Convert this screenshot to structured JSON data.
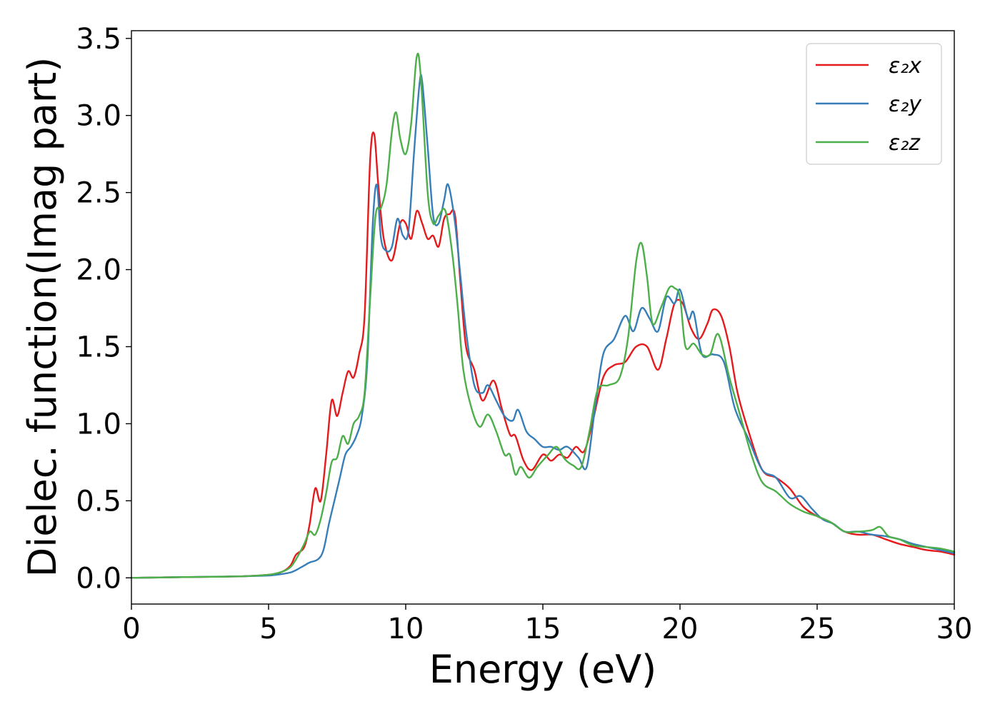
{
  "chart_data": {
    "type": "line",
    "xlabel": "Energy (eV)",
    "ylabel": "Dielec. function(Imag part)",
    "xlim": [
      0,
      30
    ],
    "ylim": [
      -0.17,
      3.55
    ],
    "xticks": [
      0,
      5,
      10,
      15,
      20,
      25,
      30
    ],
    "yticks": [
      0.0,
      0.5,
      1.0,
      1.5,
      2.0,
      2.5,
      3.0,
      3.5
    ],
    "xtick_labels": [
      "0",
      "5",
      "10",
      "15",
      "20",
      "25",
      "30"
    ],
    "ytick_labels": [
      "0.0",
      "0.5",
      "1.0",
      "1.5",
      "2.0",
      "2.5",
      "3.0",
      "3.5"
    ],
    "grid": false,
    "legend_position": "top-right",
    "series": [
      {
        "name": "ε₂x",
        "color": "#e41a1c",
        "x": [
          0,
          2,
          4,
          5,
          5.5,
          5.8,
          6.0,
          6.3,
          6.5,
          6.7,
          6.9,
          7.1,
          7.3,
          7.5,
          7.7,
          7.9,
          8.1,
          8.3,
          8.5,
          8.7,
          8.85,
          9.0,
          9.2,
          9.5,
          9.8,
          10.0,
          10.2,
          10.4,
          10.6,
          10.8,
          11.0,
          11.2,
          11.4,
          11.6,
          11.8,
          12.0,
          12.2,
          12.5,
          12.8,
          13.2,
          13.5,
          13.8,
          14.0,
          14.3,
          14.6,
          15.0,
          15.3,
          15.6,
          15.9,
          16.2,
          16.5,
          16.8,
          17.2,
          17.6,
          18.0,
          18.4,
          18.8,
          19.2,
          19.5,
          19.8,
          20.1,
          20.4,
          20.7,
          21.0,
          21.2,
          21.5,
          21.8,
          22.1,
          22.5,
          23.0,
          23.5,
          24.0,
          24.5,
          25.0,
          25.5,
          26.0,
          26.5,
          27.0,
          27.5,
          28.0,
          28.5,
          29.0,
          29.5,
          30.0
        ],
        "values": [
          0.0,
          0.005,
          0.01,
          0.02,
          0.04,
          0.08,
          0.15,
          0.2,
          0.35,
          0.58,
          0.5,
          0.8,
          1.15,
          1.05,
          1.2,
          1.34,
          1.3,
          1.45,
          1.7,
          2.7,
          2.88,
          2.55,
          2.2,
          2.06,
          2.3,
          2.3,
          2.2,
          2.38,
          2.3,
          2.2,
          2.22,
          2.15,
          2.33,
          2.36,
          2.35,
          1.9,
          1.5,
          1.35,
          1.15,
          1.28,
          1.1,
          0.93,
          0.92,
          0.76,
          0.7,
          0.8,
          0.76,
          0.8,
          0.78,
          0.85,
          0.82,
          1.0,
          1.3,
          1.38,
          1.4,
          1.5,
          1.5,
          1.35,
          1.55,
          1.78,
          1.78,
          1.62,
          1.55,
          1.65,
          1.74,
          1.7,
          1.5,
          1.2,
          0.95,
          0.7,
          0.65,
          0.58,
          0.46,
          0.4,
          0.36,
          0.3,
          0.28,
          0.28,
          0.25,
          0.22,
          0.2,
          0.18,
          0.17,
          0.15
        ]
      },
      {
        "name": "ε₂y",
        "color": "#377eb8",
        "x": [
          0,
          2,
          4,
          5,
          5.5,
          5.8,
          6.0,
          6.3,
          6.5,
          6.8,
          7.0,
          7.2,
          7.4,
          7.6,
          7.8,
          8.0,
          8.2,
          8.4,
          8.6,
          8.8,
          8.95,
          9.1,
          9.3,
          9.5,
          9.7,
          9.9,
          10.1,
          10.3,
          10.5,
          10.6,
          10.8,
          11.0,
          11.2,
          11.4,
          11.55,
          11.8,
          12.0,
          12.2,
          12.5,
          12.8,
          13.0,
          13.3,
          13.6,
          13.9,
          14.1,
          14.4,
          14.7,
          15.0,
          15.3,
          15.6,
          15.9,
          16.3,
          16.6,
          16.9,
          17.2,
          17.6,
          18.0,
          18.3,
          18.6,
          18.9,
          19.2,
          19.5,
          19.8,
          20.0,
          20.3,
          20.5,
          20.8,
          21.2,
          21.6,
          22.0,
          22.5,
          23.0,
          23.5,
          24.0,
          24.4,
          24.8,
          25.2,
          25.6,
          26.0,
          26.5,
          27.0,
          27.5,
          28.0,
          28.5,
          29.0,
          29.5,
          30.0
        ],
        "values": [
          0.0,
          0.005,
          0.01,
          0.015,
          0.025,
          0.035,
          0.05,
          0.08,
          0.1,
          0.12,
          0.18,
          0.35,
          0.5,
          0.65,
          0.8,
          0.85,
          0.92,
          1.05,
          1.4,
          2.3,
          2.55,
          2.2,
          2.12,
          2.15,
          2.33,
          2.22,
          2.25,
          2.75,
          3.2,
          3.22,
          2.8,
          2.35,
          2.3,
          2.45,
          2.55,
          2.3,
          1.95,
          1.6,
          1.25,
          1.2,
          1.25,
          1.15,
          1.05,
          1.02,
          1.09,
          0.95,
          0.9,
          0.85,
          0.85,
          0.83,
          0.85,
          0.78,
          0.72,
          1.1,
          1.45,
          1.55,
          1.7,
          1.6,
          1.75,
          1.68,
          1.6,
          1.82,
          1.78,
          1.87,
          1.68,
          1.72,
          1.45,
          1.45,
          1.4,
          1.1,
          0.9,
          0.7,
          0.65,
          0.52,
          0.53,
          0.45,
          0.38,
          0.35,
          0.3,
          0.3,
          0.28,
          0.27,
          0.25,
          0.22,
          0.2,
          0.18,
          0.16
        ]
      },
      {
        "name": "ε₂z",
        "color": "#4daf4a",
        "x": [
          0,
          2,
          4,
          5,
          5.5,
          5.8,
          6.0,
          6.3,
          6.5,
          6.7,
          6.9,
          7.1,
          7.3,
          7.5,
          7.7,
          7.9,
          8.1,
          8.3,
          8.5,
          8.7,
          8.9,
          9.1,
          9.3,
          9.5,
          9.65,
          9.8,
          10.0,
          10.2,
          10.4,
          10.55,
          10.8,
          11.0,
          11.2,
          11.45,
          11.7,
          11.9,
          12.1,
          12.4,
          12.7,
          13.0,
          13.3,
          13.6,
          13.8,
          14.0,
          14.2,
          14.5,
          14.8,
          15.2,
          15.5,
          15.8,
          16.1,
          16.4,
          16.7,
          17.0,
          17.4,
          17.8,
          18.1,
          18.4,
          18.6,
          18.8,
          19.0,
          19.3,
          19.6,
          19.8,
          20.0,
          20.2,
          20.5,
          20.8,
          21.1,
          21.4,
          21.8,
          22.2,
          22.6,
          23.0,
          23.5,
          24.0,
          24.5,
          25.0,
          25.5,
          26.0,
          26.5,
          27.0,
          27.3,
          27.6,
          28.0,
          28.5,
          29.0,
          29.5,
          30.0
        ],
        "values": [
          0.0,
          0.005,
          0.01,
          0.02,
          0.04,
          0.07,
          0.12,
          0.22,
          0.3,
          0.28,
          0.38,
          0.55,
          0.75,
          0.78,
          0.92,
          0.87,
          1.0,
          1.05,
          1.2,
          1.8,
          2.35,
          2.4,
          2.55,
          2.9,
          3.02,
          2.85,
          2.75,
          2.95,
          3.38,
          3.25,
          2.5,
          2.3,
          2.35,
          2.38,
          2.1,
          1.75,
          1.35,
          1.1,
          0.98,
          1.06,
          0.95,
          0.8,
          0.8,
          0.67,
          0.72,
          0.65,
          0.72,
          0.8,
          0.85,
          0.77,
          0.73,
          0.72,
          0.95,
          1.22,
          1.25,
          1.3,
          1.55,
          2.05,
          2.17,
          1.95,
          1.65,
          1.75,
          1.88,
          1.88,
          1.82,
          1.5,
          1.52,
          1.45,
          1.45,
          1.58,
          1.3,
          1.05,
          0.8,
          0.62,
          0.56,
          0.48,
          0.43,
          0.4,
          0.36,
          0.3,
          0.3,
          0.31,
          0.33,
          0.27,
          0.25,
          0.21,
          0.2,
          0.19,
          0.17
        ]
      }
    ]
  }
}
